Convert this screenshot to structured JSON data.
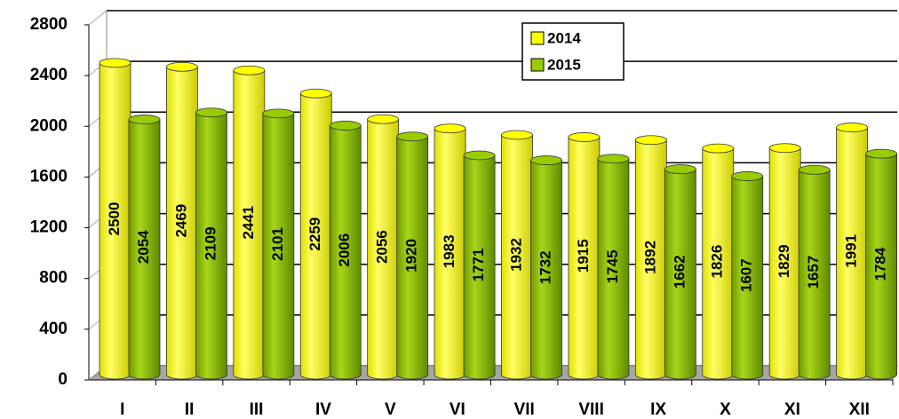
{
  "chart_data": {
    "type": "bar",
    "categories": [
      "I",
      "II",
      "III",
      "IV",
      "V",
      "VI",
      "VII",
      "VIII",
      "IX",
      "X",
      "XI",
      "XII"
    ],
    "series": [
      {
        "name": "2014",
        "color": "#ffff00",
        "values": [
          2500,
          2469,
          2441,
          2259,
          2056,
          1983,
          1932,
          1915,
          1892,
          1826,
          1829,
          1991
        ]
      },
      {
        "name": "2015",
        "color": "#99cc00",
        "values": [
          2054,
          2109,
          2101,
          2006,
          1920,
          1771,
          1732,
          1745,
          1662,
          1607,
          1657,
          1784
        ]
      }
    ],
    "ylim": [
      0,
      2800
    ],
    "yticks": [
      0,
      400,
      800,
      1200,
      1600,
      2000,
      2400,
      2800
    ],
    "grid": true,
    "legend": "top-right"
  }
}
